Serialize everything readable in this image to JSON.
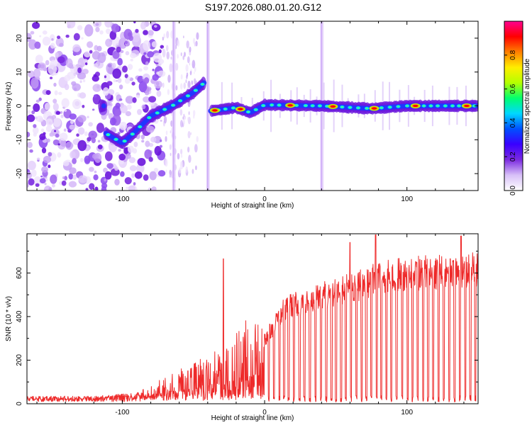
{
  "title": "S197.2026.080.01.20.G12",
  "chart_data": [
    {
      "type": "heatmap",
      "title": "S197.2026.080.01.20.G12",
      "xlabel": "Height of straight line (km)",
      "ylabel": "Frequency (Hz)",
      "xlim": [
        -167,
        150
      ],
      "ylim": [
        -25,
        25
      ],
      "x_ticks": [
        -100,
        0,
        100
      ],
      "y_ticks": [
        -20,
        -10,
        0,
        10,
        20
      ],
      "colorbar": {
        "label": "Normalized spectral amplitude",
        "range": [
          0.0,
          1.0
        ],
        "ticks": [
          "0.0",
          "0.2",
          "0.4",
          "0.6",
          "0.8"
        ],
        "colors": [
          "#ffffff",
          "#d8c0f8",
          "#7b2be0",
          "#3a00ff",
          "#0050ff",
          "#00d8ff",
          "#00ff70",
          "#b4ff00",
          "#ffee00",
          "#ff8000",
          "#ff0000",
          "#ff0090"
        ]
      },
      "features": {
        "signal_trace": [
          {
            "x": -112,
            "y": -8
          },
          {
            "x": -100,
            "y": -11
          },
          {
            "x": -92,
            "y": -8
          },
          {
            "x": -80,
            "y": -3
          },
          {
            "x": -65,
            "y": 0
          },
          {
            "x": -50,
            "y": 4
          },
          {
            "x": -42,
            "y": 7
          },
          {
            "x": -38,
            "y": -1.5
          },
          {
            "x": -20,
            "y": -0.5
          },
          {
            "x": -10,
            "y": -2
          },
          {
            "x": 0,
            "y": 0.3
          },
          {
            "x": 40,
            "y": 0
          },
          {
            "x": 75,
            "y": -0.8
          },
          {
            "x": 100,
            "y": 0
          },
          {
            "x": 150,
            "y": 0
          }
        ],
        "bright_blobs_x": [
          -35,
          -17,
          18,
          48,
          77,
          106,
          142
        ],
        "vertical_streaks_x": [
          -64,
          -40,
          40
        ]
      }
    },
    {
      "type": "line",
      "xlabel": "Height of straight line (km)",
      "ylabel": "SNR (10 * v/v)",
      "xlim": [
        -167,
        150
      ],
      "ylim": [
        0,
        780
      ],
      "x_ticks": [
        -100,
        0,
        100
      ],
      "y_ticks": [
        0,
        200,
        400,
        600
      ],
      "color": "#ee2a2a",
      "series": [
        {
          "name": "SNR",
          "envelope": [
            {
              "x": -167,
              "y": 25
            },
            {
              "x": -120,
              "y": 25
            },
            {
              "x": -90,
              "y": 40
            },
            {
              "x": -80,
              "y": 80
            },
            {
              "x": -65,
              "y": 130
            },
            {
              "x": -50,
              "y": 170
            },
            {
              "x": -40,
              "y": 220
            },
            {
              "x": -30,
              "y": 240
            },
            {
              "x": -20,
              "y": 300
            },
            {
              "x": -10,
              "y": 380
            },
            {
              "x": 0,
              "y": 300
            },
            {
              "x": 10,
              "y": 430
            },
            {
              "x": 20,
              "y": 480
            },
            {
              "x": 40,
              "y": 520
            },
            {
              "x": 60,
              "y": 560
            },
            {
              "x": 80,
              "y": 610
            },
            {
              "x": 100,
              "y": 630
            },
            {
              "x": 120,
              "y": 640
            },
            {
              "x": 150,
              "y": 650
            }
          ],
          "spikes": [
            {
              "x": -29,
              "y": 665
            },
            {
              "x": 60,
              "y": 740
            },
            {
              "x": 78,
              "y": 775
            },
            {
              "x": 138,
              "y": 770
            }
          ]
        }
      ]
    }
  ]
}
